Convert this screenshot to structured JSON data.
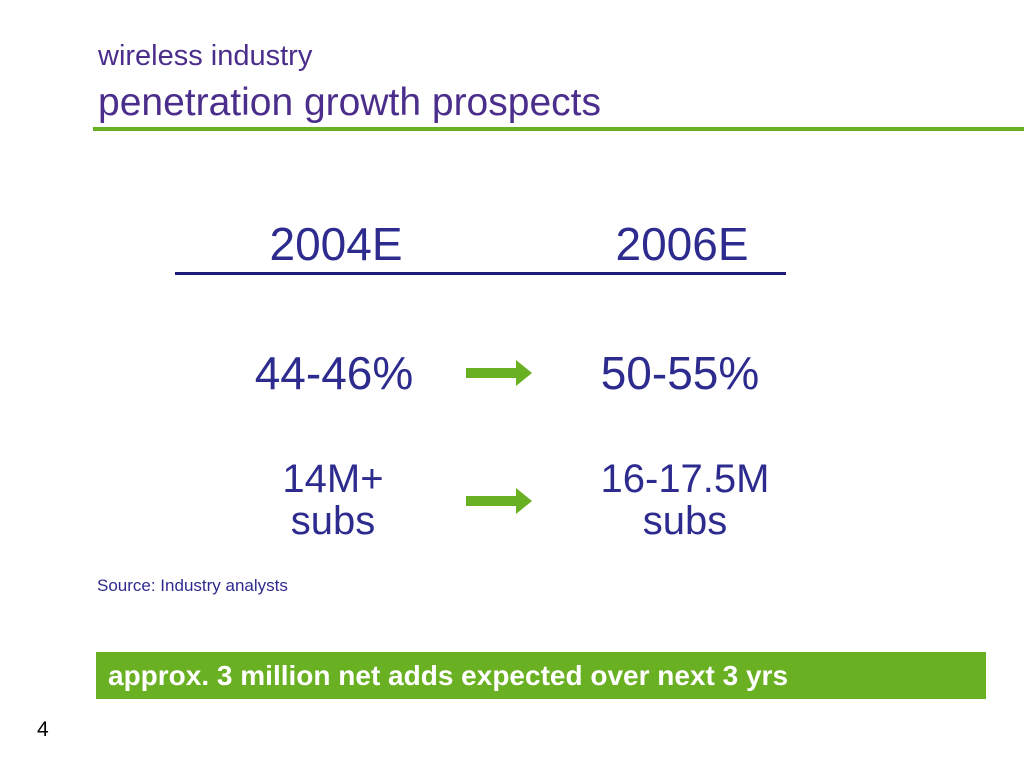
{
  "colors": {
    "title": "#4B2E8C",
    "text": "#2E2B8F",
    "accent_green": "#6AB023",
    "rule_blue": "#1E1A7A",
    "banner_text": "#ffffff"
  },
  "title": {
    "line1": "wireless industry",
    "line2": "penetration growth prospects"
  },
  "columns": {
    "left_header": "2004E",
    "right_header": "2006E"
  },
  "rows": [
    {
      "left": "44-46%",
      "right": "50-55%",
      "arrow_icon": "arrow-right-icon"
    },
    {
      "left_line1": "14M+",
      "left_line2": "subs",
      "right_line1": "16-17.5M",
      "right_line2": "subs",
      "arrow_icon": "arrow-right-icon"
    }
  ],
  "source": "Source: Industry analysts",
  "banner": "approx. 3 million net adds expected over next 3 yrs",
  "page_number": "4"
}
